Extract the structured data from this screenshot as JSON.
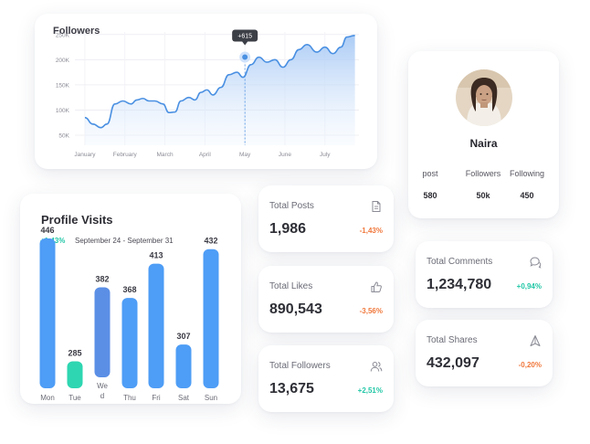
{
  "followers_card": {
    "title": "Followers",
    "tooltip": "+615",
    "colors": {
      "line": "#4a90e2",
      "fill": "#bcd6f8",
      "grid": "#ececf2"
    }
  },
  "chart_data": [
    {
      "type": "area",
      "title": "Followers",
      "xlabel": "",
      "ylabel": "",
      "y_ticks": [
        "250K",
        "200K",
        "150K",
        "100K",
        "50K"
      ],
      "y_tick_values": [
        250000,
        200000,
        150000,
        100000,
        50000
      ],
      "x_ticks": [
        "January",
        "February",
        "March",
        "April",
        "May",
        "June",
        "July"
      ],
      "ylim": [
        30000,
        255000
      ],
      "grid": true,
      "highlight": {
        "label": "+615",
        "near": "May",
        "value": 205000
      },
      "series": [
        {
          "x": [
            0,
            0.2,
            0.4,
            0.55,
            0.75,
            0.95,
            1.15,
            1.3,
            1.45,
            1.6,
            1.75,
            1.95,
            2.1,
            2.25,
            2.4,
            2.6,
            2.75,
            2.9,
            3.05,
            3.2,
            3.4,
            3.6,
            3.8,
            3.95,
            4.15,
            4.35,
            4.55,
            4.75,
            4.95,
            5.15,
            5.35,
            5.55,
            5.8,
            6.0,
            6.2,
            6.4,
            6.55,
            6.75
          ],
          "values": [
            85000,
            72000,
            65000,
            72000,
            112000,
            118000,
            112000,
            120000,
            123000,
            118000,
            118000,
            112000,
            95000,
            96000,
            118000,
            125000,
            120000,
            135000,
            140000,
            130000,
            145000,
            170000,
            175000,
            165000,
            190000,
            205000,
            195000,
            200000,
            185000,
            200000,
            220000,
            230000,
            215000,
            225000,
            212000,
            225000,
            245000,
            248000
          ]
        }
      ]
    },
    {
      "type": "bar",
      "title": "Profile Visits",
      "categories": [
        "Mon",
        "Tue",
        "Wed",
        "Thu",
        "Fri",
        "Sat",
        "Sun"
      ],
      "values": [
        446,
        285,
        382,
        368,
        413,
        307,
        432
      ],
      "ylim": [
        200,
        460
      ],
      "highlight_category": "Tue",
      "colors": {
        "bar": "#4e9df6",
        "highlight": "#2ed6b1",
        "wed_bar": "#5b8fe6"
      }
    }
  ],
  "profile": {
    "name": "Naira",
    "stats": [
      {
        "label": "post",
        "value": "580"
      },
      {
        "label": "Followers",
        "value": "50k"
      },
      {
        "label": "Following",
        "value": "450"
      }
    ]
  },
  "visits": {
    "title": "Profile Visits",
    "change": "+1,43%",
    "range": "September 24 - September 31",
    "wed_label_line1": "We",
    "wed_label_line2": "d"
  },
  "stats": {
    "posts": {
      "label": "Total Posts",
      "value": "1,986",
      "change": "-1,43%",
      "icon": "document-icon"
    },
    "likes": {
      "label": "Total Likes",
      "value": "890,543",
      "change": "-3,56%",
      "icon": "thumbs-up-icon"
    },
    "followers": {
      "label": "Total Followers",
      "value": "13,675",
      "change": "+2,51%",
      "icon": "users-icon"
    },
    "comments": {
      "label": "Total Comments",
      "value": "1,234,780",
      "change": "+0,94%",
      "icon": "comment-icon"
    },
    "shares": {
      "label": "Total Shares",
      "value": "432,097",
      "change": "-0,20%",
      "icon": "share-arrow-icon"
    }
  }
}
